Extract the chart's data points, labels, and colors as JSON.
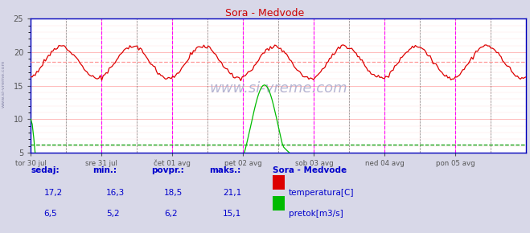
{
  "title": "Sora - Medvode",
  "title_color": "#cc0000",
  "bg_color": "#d8d8e8",
  "plot_bg_color": "#ffffff",
  "grid_color_major": "#ffb0b0",
  "grid_color_minor": "#ffe0e0",
  "temp_color": "#dd0000",
  "flow_color": "#00bb00",
  "avg_temp_color": "#ff9999",
  "avg_flow_color": "#009900",
  "vline_magenta": "#ff00ff",
  "vline_dark": "#333333",
  "axis_color": "#0000bb",
  "tick_label_color": "#555555",
  "n_points": 336,
  "temp_min": 16.3,
  "temp_max": 21.1,
  "temp_avg": 18.5,
  "temp_current": 17.2,
  "flow_min": 5.2,
  "flow_max": 15.1,
  "flow_avg": 6.2,
  "flow_current": 6.5,
  "ymin": 5,
  "ymax": 25,
  "watermark": "www.si-vreme.com",
  "watermark_color": "#aaaacc",
  "legend_title": "Sora - Medvode",
  "legend_title_color": "#0000cc",
  "footer_label_color": "#0000cc",
  "footer_value_color": "#0000cc",
  "sidebar_text": "www.si-vreme.com",
  "sidebar_color": "#8888aa",
  "day_labels": [
    "tor 30 jul",
    "sre 31 jul",
    "čet 01 avg",
    "pet 02 avg",
    "sob 03 avg",
    "ned 04 avg",
    "pon 05 avg"
  ]
}
